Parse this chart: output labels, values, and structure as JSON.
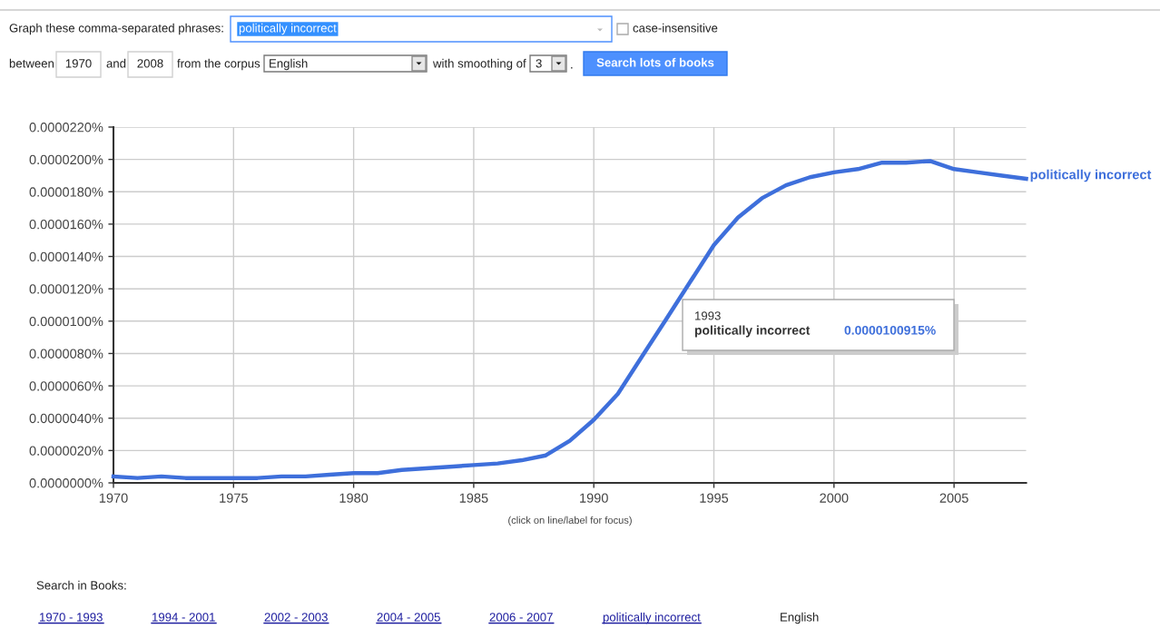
{
  "chart_data": {
    "type": "line",
    "x": [
      1970,
      1971,
      1972,
      1973,
      1974,
      1975,
      1976,
      1977,
      1978,
      1979,
      1980,
      1981,
      1982,
      1983,
      1984,
      1985,
      1986,
      1987,
      1988,
      1989,
      1990,
      1991,
      1992,
      1993,
      1994,
      1995,
      1996,
      1997,
      1998,
      1999,
      2000,
      2001,
      2002,
      2003,
      2004,
      2005,
      2006,
      2007,
      2008
    ],
    "series": [
      {
        "name": "politically incorrect",
        "color": "#3e6fdb",
        "values": [
          4e-07,
          3e-07,
          4e-07,
          3e-07,
          3e-07,
          3e-07,
          3e-07,
          4e-07,
          4e-07,
          5e-07,
          6e-07,
          6e-07,
          8e-07,
          9e-07,
          1e-06,
          1.1e-06,
          1.2e-06,
          1.4e-06,
          1.7e-06,
          2.6e-06,
          3.9e-06,
          5.5e-06,
          7.8e-06,
          1.00915e-05,
          1.24e-05,
          1.47e-05,
          1.64e-05,
          1.76e-05,
          1.84e-05,
          1.89e-05,
          1.92e-05,
          1.94e-05,
          1.98e-05,
          1.98e-05,
          1.99e-05,
          1.94e-05,
          1.92e-05,
          1.9e-05,
          1.88e-05
        ]
      }
    ],
    "xlim": [
      1970,
      2008
    ],
    "xticks": [
      1970,
      1975,
      1980,
      1985,
      1990,
      1995,
      2000,
      2005
    ],
    "ylim": [
      0,
      2.2e-05
    ],
    "yticks": [
      {
        "value": 0,
        "label": "0.0000000%"
      },
      {
        "value": 2e-06,
        "label": "0.0000020%"
      },
      {
        "value": 4e-06,
        "label": "0.0000040%"
      },
      {
        "value": 6e-06,
        "label": "0.0000060%"
      },
      {
        "value": 8e-06,
        "label": "0.0000080%"
      },
      {
        "value": 1e-05,
        "label": "0.0000100%"
      },
      {
        "value": 1.2e-05,
        "label": "0.0000120%"
      },
      {
        "value": 1.4e-05,
        "label": "0.0000140%"
      },
      {
        "value": 1.6e-05,
        "label": "0.0000160%"
      },
      {
        "value": 1.8e-05,
        "label": "0.0000180%"
      },
      {
        "value": 2e-05,
        "label": "0.0000200%"
      },
      {
        "value": 2.2e-05,
        "label": "0.0000220%"
      }
    ],
    "grid": true,
    "line_style": "solid",
    "annotations": [
      "Graph these comma-separated phrases:",
      "politically incorrect",
      "case-insensitive",
      "between",
      "1970",
      "and",
      "2008",
      "from the corpus",
      "English",
      "with smoothing of",
      "3",
      ".",
      "Search lots of books",
      "(click on line/label for focus)",
      "Search in Books:",
      "1970 - 1993",
      "1994 - 2001",
      "2002 - 2003",
      "2004 - 2005",
      "2006 - 2007",
      "politically incorrect",
      "English",
      "1993",
      "0.0000100915%"
    ]
  }
}
